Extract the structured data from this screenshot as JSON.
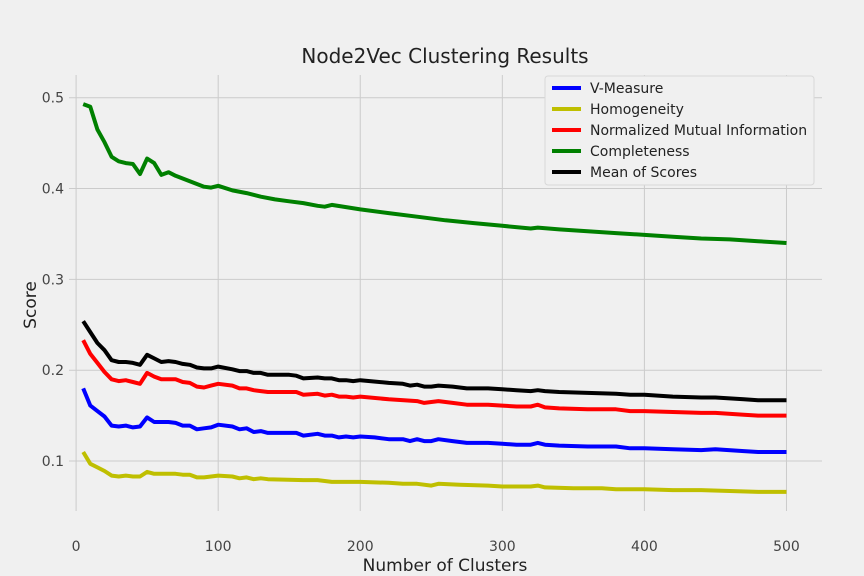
{
  "chart_data": {
    "type": "line",
    "title": "Node2Vec Clustering Results",
    "xlabel": "Number of Clusters",
    "ylabel": "Score",
    "xlim": [
      -5,
      525
    ],
    "ylim": [
      0.045,
      0.525
    ],
    "xticks": [
      0,
      100,
      200,
      300,
      400,
      500
    ],
    "yticks": [
      0.1,
      0.2,
      0.3,
      0.4,
      0.5
    ],
    "grid": true,
    "legend_position": "top-right",
    "series": [
      {
        "name": "V-Measure",
        "color": "#0000ff",
        "points": [
          [
            5,
            0.18
          ],
          [
            10,
            0.161
          ],
          [
            15,
            0.155
          ],
          [
            20,
            0.149
          ],
          [
            25,
            0.139
          ],
          [
            30,
            0.138
          ],
          [
            35,
            0.139
          ],
          [
            40,
            0.137
          ],
          [
            45,
            0.138
          ],
          [
            50,
            0.148
          ],
          [
            55,
            0.143
          ],
          [
            60,
            0.143
          ],
          [
            65,
            0.143
          ],
          [
            70,
            0.142
          ],
          [
            75,
            0.139
          ],
          [
            80,
            0.139
          ],
          [
            85,
            0.135
          ],
          [
            90,
            0.136
          ],
          [
            95,
            0.137
          ],
          [
            100,
            0.14
          ],
          [
            110,
            0.138
          ],
          [
            115,
            0.135
          ],
          [
            120,
            0.136
          ],
          [
            125,
            0.132
          ],
          [
            130,
            0.133
          ],
          [
            135,
            0.131
          ],
          [
            150,
            0.131
          ],
          [
            155,
            0.131
          ],
          [
            160,
            0.128
          ],
          [
            170,
            0.13
          ],
          [
            175,
            0.128
          ],
          [
            180,
            0.128
          ],
          [
            185,
            0.126
          ],
          [
            190,
            0.127
          ],
          [
            195,
            0.126
          ],
          [
            200,
            0.127
          ],
          [
            210,
            0.126
          ],
          [
            220,
            0.124
          ],
          [
            230,
            0.124
          ],
          [
            235,
            0.122
          ],
          [
            240,
            0.124
          ],
          [
            245,
            0.122
          ],
          [
            250,
            0.122
          ],
          [
            255,
            0.124
          ],
          [
            265,
            0.122
          ],
          [
            275,
            0.12
          ],
          [
            290,
            0.12
          ],
          [
            300,
            0.119
          ],
          [
            310,
            0.118
          ],
          [
            320,
            0.118
          ],
          [
            325,
            0.12
          ],
          [
            330,
            0.118
          ],
          [
            340,
            0.117
          ],
          [
            360,
            0.116
          ],
          [
            380,
            0.116
          ],
          [
            390,
            0.114
          ],
          [
            400,
            0.114
          ],
          [
            420,
            0.113
          ],
          [
            440,
            0.112
          ],
          [
            450,
            0.113
          ],
          [
            470,
            0.111
          ],
          [
            480,
            0.11
          ],
          [
            500,
            0.11
          ]
        ]
      },
      {
        "name": "Homogeneity",
        "color": "#bfbf00",
        "points": [
          [
            5,
            0.11
          ],
          [
            10,
            0.097
          ],
          [
            15,
            0.093
          ],
          [
            20,
            0.089
          ],
          [
            25,
            0.084
          ],
          [
            30,
            0.083
          ],
          [
            35,
            0.084
          ],
          [
            40,
            0.083
          ],
          [
            45,
            0.083
          ],
          [
            50,
            0.088
          ],
          [
            55,
            0.086
          ],
          [
            60,
            0.086
          ],
          [
            70,
            0.086
          ],
          [
            75,
            0.085
          ],
          [
            80,
            0.085
          ],
          [
            85,
            0.082
          ],
          [
            90,
            0.082
          ],
          [
            95,
            0.083
          ],
          [
            100,
            0.084
          ],
          [
            110,
            0.083
          ],
          [
            115,
            0.081
          ],
          [
            120,
            0.082
          ],
          [
            125,
            0.08
          ],
          [
            130,
            0.081
          ],
          [
            135,
            0.08
          ],
          [
            160,
            0.079
          ],
          [
            170,
            0.079
          ],
          [
            180,
            0.077
          ],
          [
            190,
            0.077
          ],
          [
            200,
            0.077
          ],
          [
            220,
            0.076
          ],
          [
            230,
            0.075
          ],
          [
            240,
            0.075
          ],
          [
            250,
            0.073
          ],
          [
            255,
            0.075
          ],
          [
            270,
            0.074
          ],
          [
            290,
            0.073
          ],
          [
            300,
            0.072
          ],
          [
            310,
            0.072
          ],
          [
            320,
            0.072
          ],
          [
            325,
            0.073
          ],
          [
            330,
            0.071
          ],
          [
            350,
            0.07
          ],
          [
            370,
            0.07
          ],
          [
            380,
            0.069
          ],
          [
            400,
            0.069
          ],
          [
            420,
            0.068
          ],
          [
            440,
            0.068
          ],
          [
            460,
            0.067
          ],
          [
            480,
            0.066
          ],
          [
            500,
            0.066
          ]
        ]
      },
      {
        "name": "Normalized Mutual Information",
        "color": "#ff0000",
        "points": [
          [
            5,
            0.233
          ],
          [
            10,
            0.218
          ],
          [
            15,
            0.208
          ],
          [
            20,
            0.198
          ],
          [
            25,
            0.19
          ],
          [
            30,
            0.188
          ],
          [
            35,
            0.189
          ],
          [
            40,
            0.187
          ],
          [
            45,
            0.185
          ],
          [
            50,
            0.197
          ],
          [
            55,
            0.193
          ],
          [
            60,
            0.19
          ],
          [
            70,
            0.19
          ],
          [
            75,
            0.187
          ],
          [
            80,
            0.186
          ],
          [
            85,
            0.182
          ],
          [
            90,
            0.181
          ],
          [
            95,
            0.183
          ],
          [
            100,
            0.185
          ],
          [
            110,
            0.183
          ],
          [
            115,
            0.18
          ],
          [
            120,
            0.18
          ],
          [
            125,
            0.178
          ],
          [
            130,
            0.177
          ],
          [
            135,
            0.176
          ],
          [
            150,
            0.176
          ],
          [
            155,
            0.176
          ],
          [
            160,
            0.173
          ],
          [
            170,
            0.174
          ],
          [
            175,
            0.172
          ],
          [
            180,
            0.173
          ],
          [
            185,
            0.171
          ],
          [
            190,
            0.171
          ],
          [
            195,
            0.17
          ],
          [
            200,
            0.171
          ],
          [
            220,
            0.168
          ],
          [
            240,
            0.166
          ],
          [
            245,
            0.164
          ],
          [
            250,
            0.165
          ],
          [
            255,
            0.166
          ],
          [
            265,
            0.164
          ],
          [
            275,
            0.162
          ],
          [
            290,
            0.162
          ],
          [
            300,
            0.161
          ],
          [
            310,
            0.16
          ],
          [
            320,
            0.16
          ],
          [
            325,
            0.162
          ],
          [
            330,
            0.159
          ],
          [
            340,
            0.158
          ],
          [
            360,
            0.157
          ],
          [
            380,
            0.157
          ],
          [
            390,
            0.155
          ],
          [
            400,
            0.155
          ],
          [
            420,
            0.154
          ],
          [
            440,
            0.153
          ],
          [
            450,
            0.153
          ],
          [
            470,
            0.151
          ],
          [
            480,
            0.15
          ],
          [
            500,
            0.15
          ]
        ]
      },
      {
        "name": "Completeness",
        "color": "#008000",
        "points": [
          [
            5,
            0.493
          ],
          [
            10,
            0.49
          ],
          [
            15,
            0.465
          ],
          [
            20,
            0.451
          ],
          [
            25,
            0.435
          ],
          [
            30,
            0.43
          ],
          [
            35,
            0.428
          ],
          [
            40,
            0.427
          ],
          [
            45,
            0.416
          ],
          [
            50,
            0.433
          ],
          [
            55,
            0.428
          ],
          [
            60,
            0.415
          ],
          [
            65,
            0.418
          ],
          [
            70,
            0.414
          ],
          [
            80,
            0.408
          ],
          [
            90,
            0.402
          ],
          [
            95,
            0.401
          ],
          [
            100,
            0.403
          ],
          [
            110,
            0.398
          ],
          [
            120,
            0.395
          ],
          [
            130,
            0.391
          ],
          [
            140,
            0.388
          ],
          [
            150,
            0.386
          ],
          [
            160,
            0.384
          ],
          [
            170,
            0.381
          ],
          [
            175,
            0.38
          ],
          [
            180,
            0.382
          ],
          [
            200,
            0.377
          ],
          [
            220,
            0.373
          ],
          [
            240,
            0.369
          ],
          [
            260,
            0.365
          ],
          [
            280,
            0.362
          ],
          [
            300,
            0.359
          ],
          [
            320,
            0.356
          ],
          [
            325,
            0.357
          ],
          [
            340,
            0.355
          ],
          [
            360,
            0.353
          ],
          [
            380,
            0.351
          ],
          [
            400,
            0.349
          ],
          [
            420,
            0.347
          ],
          [
            440,
            0.345
          ],
          [
            460,
            0.344
          ],
          [
            480,
            0.342
          ],
          [
            500,
            0.34
          ]
        ]
      },
      {
        "name": "Mean of Scores",
        "color": "#000000",
        "points": [
          [
            5,
            0.254
          ],
          [
            10,
            0.242
          ],
          [
            15,
            0.23
          ],
          [
            20,
            0.222
          ],
          [
            25,
            0.211
          ],
          [
            30,
            0.209
          ],
          [
            35,
            0.209
          ],
          [
            40,
            0.208
          ],
          [
            45,
            0.206
          ],
          [
            50,
            0.217
          ],
          [
            55,
            0.213
          ],
          [
            60,
            0.209
          ],
          [
            65,
            0.21
          ],
          [
            70,
            0.209
          ],
          [
            75,
            0.207
          ],
          [
            80,
            0.206
          ],
          [
            85,
            0.203
          ],
          [
            90,
            0.202
          ],
          [
            95,
            0.202
          ],
          [
            100,
            0.204
          ],
          [
            110,
            0.201
          ],
          [
            115,
            0.199
          ],
          [
            120,
            0.199
          ],
          [
            125,
            0.197
          ],
          [
            130,
            0.197
          ],
          [
            135,
            0.195
          ],
          [
            150,
            0.195
          ],
          [
            155,
            0.194
          ],
          [
            160,
            0.191
          ],
          [
            170,
            0.192
          ],
          [
            175,
            0.191
          ],
          [
            180,
            0.191
          ],
          [
            185,
            0.189
          ],
          [
            190,
            0.189
          ],
          [
            195,
            0.188
          ],
          [
            200,
            0.189
          ],
          [
            220,
            0.186
          ],
          [
            230,
            0.185
          ],
          [
            235,
            0.183
          ],
          [
            240,
            0.184
          ],
          [
            245,
            0.182
          ],
          [
            250,
            0.182
          ],
          [
            255,
            0.183
          ],
          [
            265,
            0.182
          ],
          [
            275,
            0.18
          ],
          [
            290,
            0.18
          ],
          [
            300,
            0.179
          ],
          [
            310,
            0.178
          ],
          [
            320,
            0.177
          ],
          [
            325,
            0.178
          ],
          [
            330,
            0.177
          ],
          [
            340,
            0.176
          ],
          [
            360,
            0.175
          ],
          [
            380,
            0.174
          ],
          [
            390,
            0.173
          ],
          [
            400,
            0.173
          ],
          [
            420,
            0.171
          ],
          [
            440,
            0.17
          ],
          [
            450,
            0.17
          ],
          [
            470,
            0.168
          ],
          [
            480,
            0.167
          ],
          [
            500,
            0.167
          ]
        ]
      }
    ]
  }
}
